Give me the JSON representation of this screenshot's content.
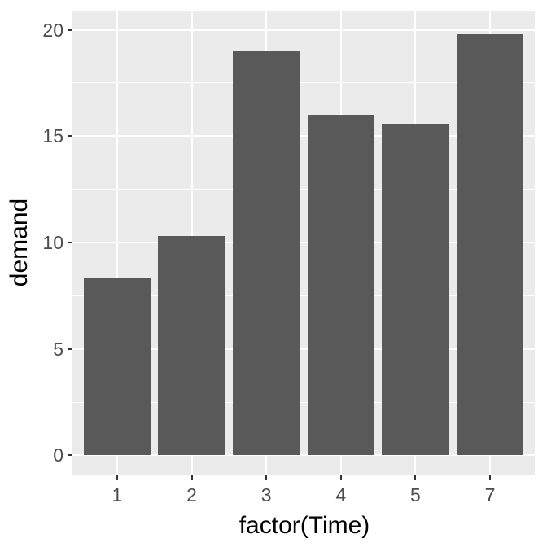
{
  "chart_data": {
    "type": "bar",
    "title": "",
    "xlabel": "factor(Time)",
    "ylabel": "demand",
    "categories": [
      "1",
      "2",
      "3",
      "4",
      "5",
      "7"
    ],
    "values": [
      8.3,
      10.3,
      19.0,
      16.0,
      15.6,
      19.8
    ],
    "y_ticks": [
      0,
      5,
      10,
      15,
      20
    ],
    "y_minor_gridlines": [
      2.5,
      7.5,
      12.5,
      17.5
    ],
    "y_range_expanded": [
      -0.9,
      20.9
    ],
    "x_axis_expansion": 0.6,
    "bar_width_fraction": 0.9,
    "grid": "horizontal major+minor, vertical major at category centers",
    "legend_position": "none",
    "colors": {
      "bar_fill": "#595959",
      "panel_background": "#EBEBEB",
      "grid_major": "#FFFFFF",
      "grid_minor": "#FFFFFF",
      "tick_mark": "#333333",
      "tick_label": "#4D4D4D",
      "axis_title": "#000000",
      "figure_background": "#FFFFFF"
    }
  }
}
